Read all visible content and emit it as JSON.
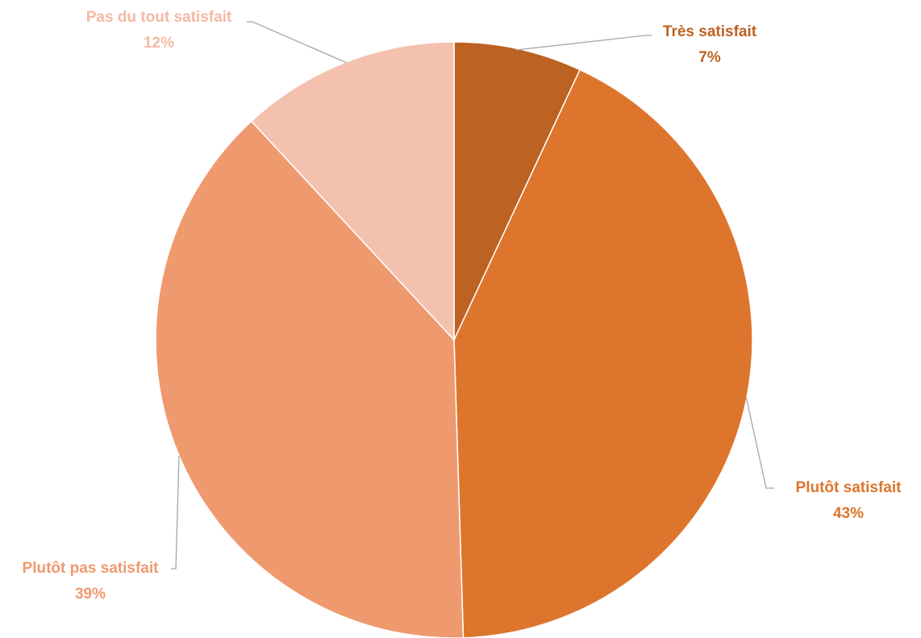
{
  "chart_data": {
    "type": "pie",
    "categories": [
      "Très satisfait",
      "Plutôt satisfait",
      "Plutôt pas satisfait",
      "Pas du tout satisfait"
    ],
    "values": [
      7,
      43,
      39,
      12
    ],
    "value_labels": [
      "7%",
      "43%",
      "39%",
      "12%"
    ],
    "colors": [
      "#bc6222",
      "#de752d",
      "#ef996f",
      "#f4c1ae"
    ]
  }
}
